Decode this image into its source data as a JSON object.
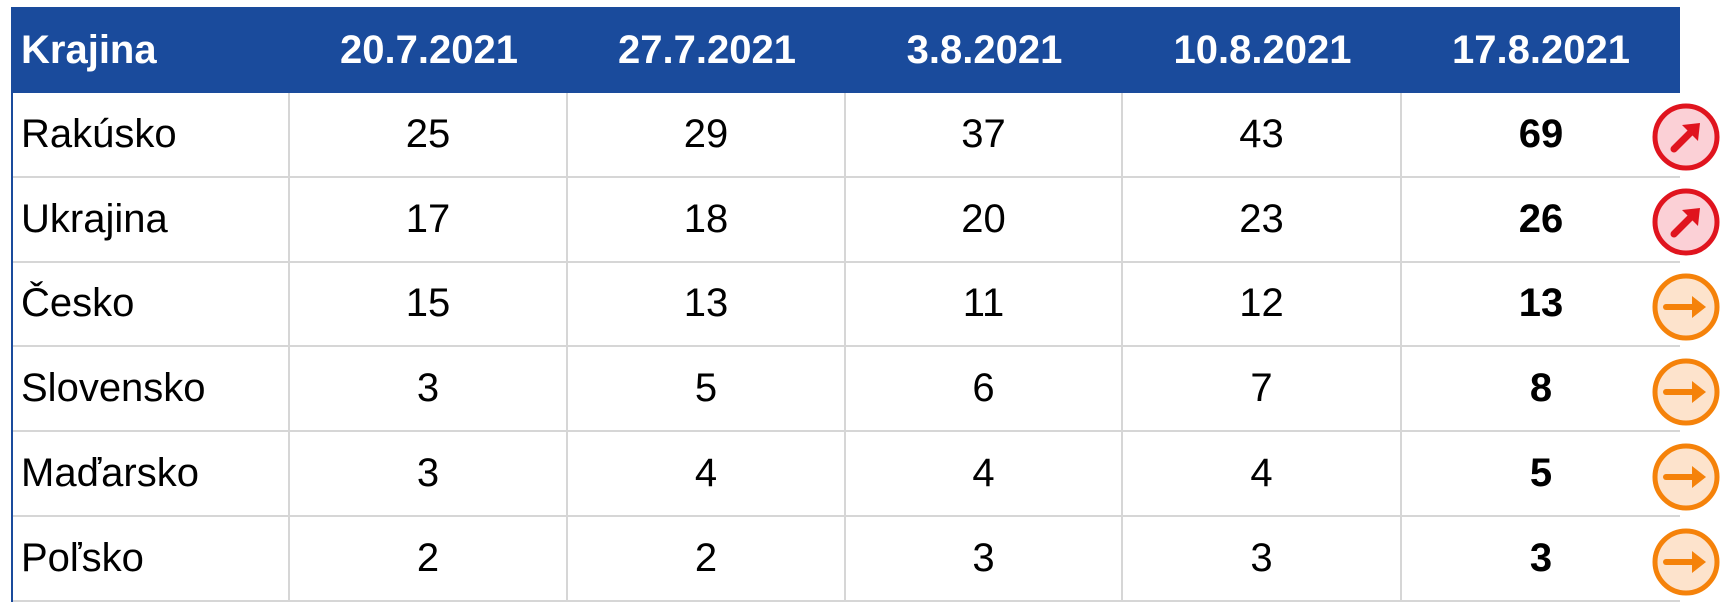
{
  "table": {
    "header": [
      "Krajina",
      "20.7.2021",
      "27.7.2021",
      "3.8.2021",
      "10.8.2021",
      "17.8.2021"
    ],
    "rows": [
      [
        "Rakúsko",
        25,
        29,
        37,
        43,
        69
      ],
      [
        "Ukrajina",
        17,
        18,
        20,
        23,
        26
      ],
      [
        "Česko",
        15,
        13,
        11,
        12,
        13
      ],
      [
        "Slovensko",
        3,
        5,
        6,
        7,
        8
      ],
      [
        "Maďarsko",
        3,
        4,
        4,
        4,
        5
      ],
      [
        "Poľsko",
        2,
        2,
        3,
        3,
        3
      ]
    ]
  }
}
